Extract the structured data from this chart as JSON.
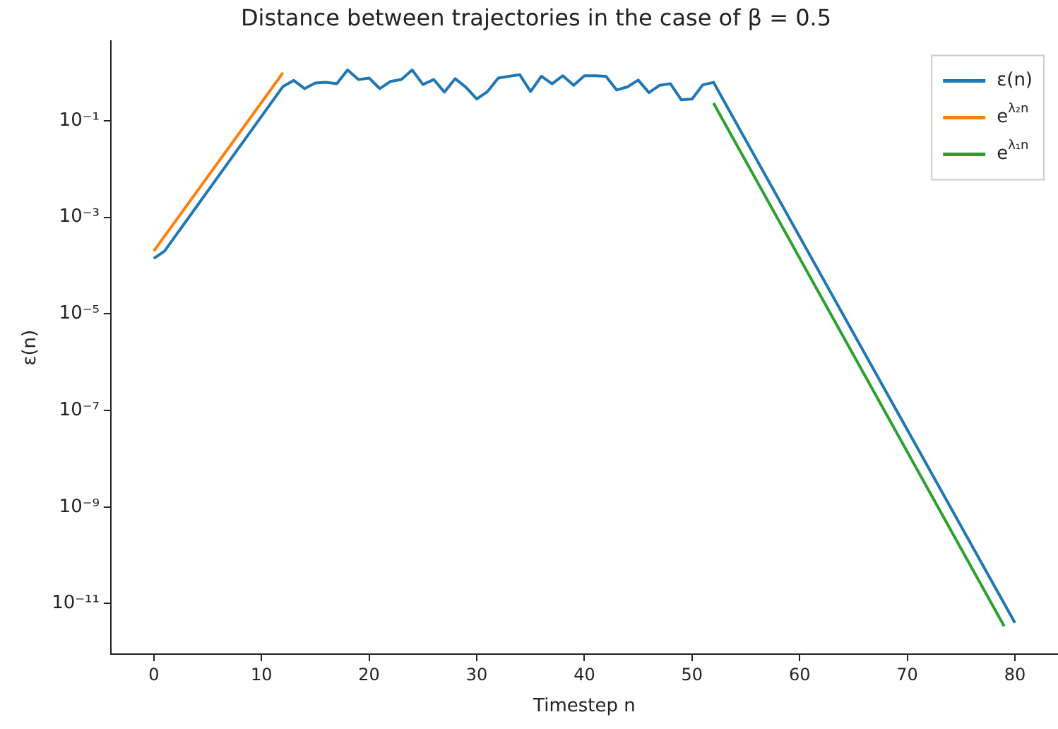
{
  "chart_data": {
    "type": "line",
    "title": "Distance between trajectories in the case of β = 0.5",
    "xlabel": "Timestep n",
    "ylabel": "ε(n)",
    "log": "y",
    "grid": false,
    "legend": "top right",
    "marker": "none",
    "line_style": "solid",
    "xlim": [
      -4,
      84
    ],
    "xticks": [
      0,
      10,
      20,
      30,
      40,
      50,
      60,
      70,
      80
    ],
    "ylim": [
      9e-13,
      4.4
    ],
    "yticks": [
      {
        "value": 1e-11,
        "label": "10⁻¹¹"
      },
      {
        "value": 1e-09,
        "label": "10⁻⁹"
      },
      {
        "value": 1e-07,
        "label": "10⁻⁷"
      },
      {
        "value": 1e-05,
        "label": "10⁻⁵"
      },
      {
        "value": 0.001,
        "label": "10⁻³"
      },
      {
        "value": 0.1,
        "label": "10⁻¹"
      }
    ],
    "series": [
      {
        "name": "ε(n)",
        "color": "#1f77b4",
        "x": [
          0,
          1,
          12,
          13,
          14,
          15,
          16,
          17,
          18,
          19,
          20,
          21,
          22,
          23,
          24,
          25,
          26,
          27,
          28,
          29,
          30,
          31,
          32,
          33,
          34,
          35,
          36,
          37,
          38,
          39,
          40,
          41,
          42,
          43,
          44,
          45,
          46,
          47,
          48,
          49,
          50,
          51,
          52,
          80
        ],
        "values": [
          0.00014,
          0.0002,
          0.51,
          0.68,
          0.46,
          0.6,
          0.62,
          0.58,
          1.12,
          0.71,
          0.76,
          0.46,
          0.65,
          0.71,
          1.12,
          0.56,
          0.71,
          0.39,
          0.74,
          0.49,
          0.28,
          0.4,
          0.76,
          0.83,
          0.89,
          0.4,
          0.83,
          0.58,
          0.85,
          0.54,
          0.85,
          0.85,
          0.83,
          0.43,
          0.5,
          0.69,
          0.38,
          0.54,
          0.58,
          0.27,
          0.28,
          0.55,
          0.62,
          4e-12
        ]
      },
      {
        "name": "e$^{λ₂n}$",
        "color": "#ff7f0e",
        "x": [
          0,
          12
        ],
        "values": [
          0.0002,
          0.98
        ]
      },
      {
        "name": "e$^{λ₁n}$",
        "color": "#2ca02c",
        "x": [
          52,
          79
        ],
        "values": [
          0.23,
          3.4e-12
        ]
      }
    ]
  }
}
